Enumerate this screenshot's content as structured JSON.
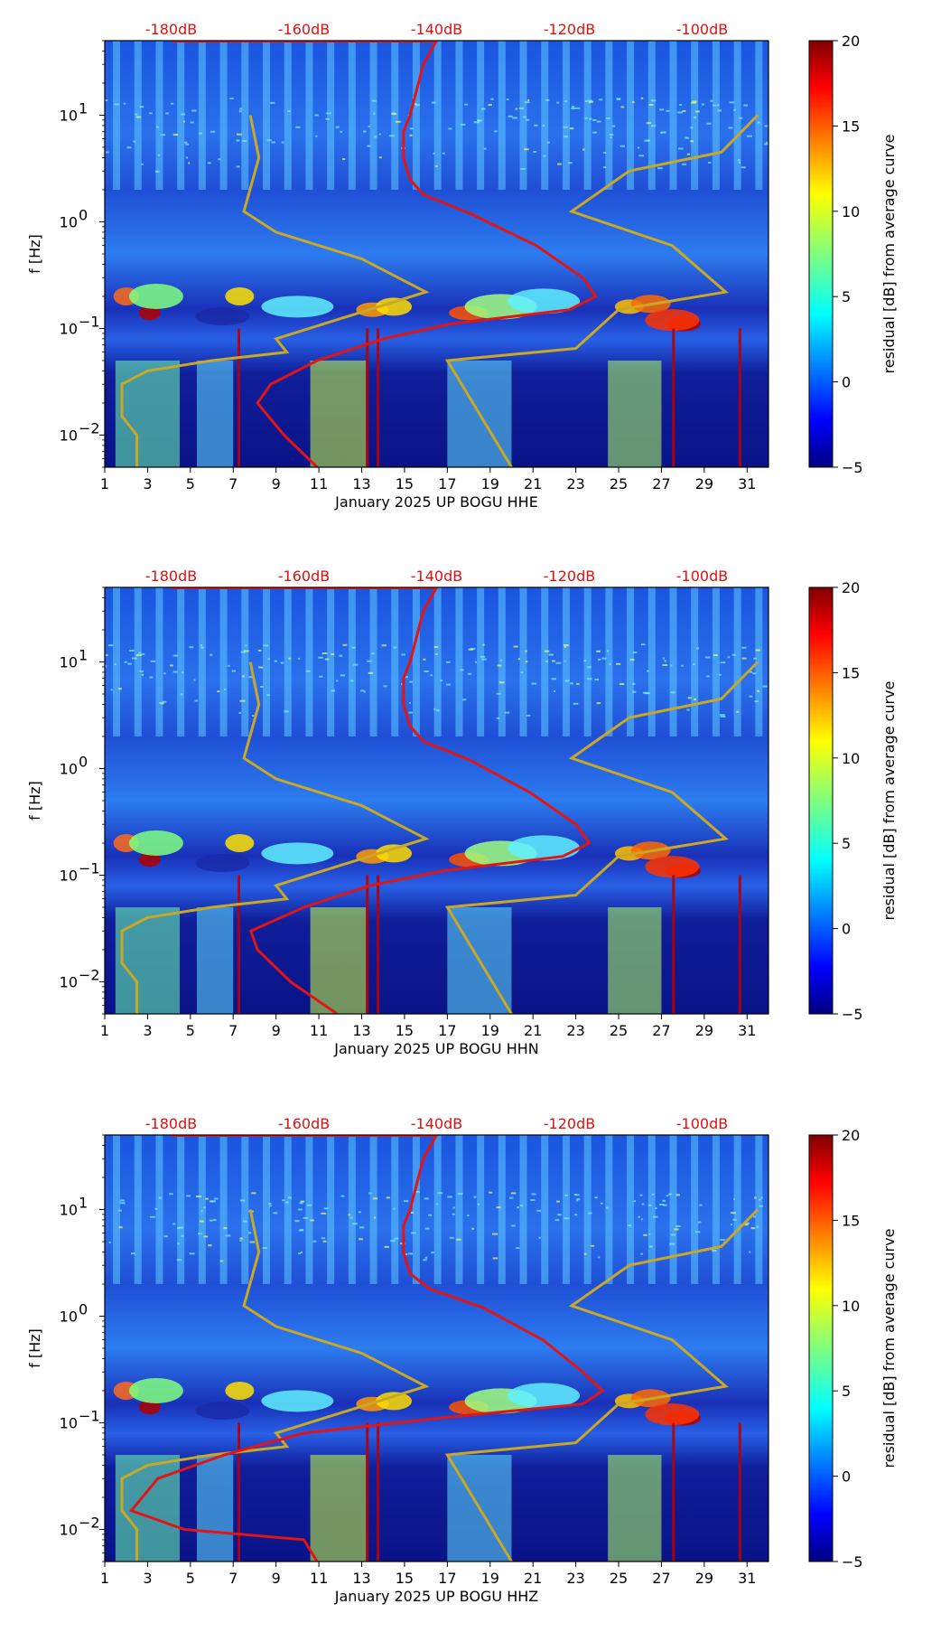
{
  "colors": {
    "psd_curve": "#e01515",
    "noise_model": "#c9a825",
    "db_label": "#e01010",
    "spectro_bg": "#0a1fb8"
  },
  "chart_data": [
    {
      "type": "heatmap",
      "component": "HHE",
      "xlabel": "January 2025 UP BOGU  HHE",
      "ylabel": "f [Hz]",
      "xlim": [
        1,
        32
      ],
      "ylim": [
        0.005,
        50
      ],
      "yscale": "log",
      "x_ticks": [
        "1",
        "3",
        "5",
        "7",
        "9",
        "11",
        "13",
        "15",
        "17",
        "19",
        "21",
        "23",
        "25",
        "27",
        "29",
        "31"
      ],
      "y_ticks": [
        {
          "exp": -2,
          "label": "10",
          "sup": "−2"
        },
        {
          "exp": -1,
          "label": "10",
          "sup": "−1"
        },
        {
          "exp": 0,
          "label": "10",
          "sup": "0"
        },
        {
          "exp": 1,
          "label": "10",
          "sup": "1"
        }
      ],
      "top_db_labels": [
        "-180dB",
        "-160dB",
        "-140dB",
        "-120dB",
        "-100dB"
      ],
      "colorbar": {
        "label": "residual [dB] from average curve",
        "min": -5,
        "max": 20,
        "ticks": [
          "20",
          "15",
          "10",
          "5",
          "0",
          "−5"
        ]
      },
      "psd_curve_db": [
        [
          -140,
          50
        ],
        [
          -142,
          30
        ],
        [
          -144,
          10
        ],
        [
          -145,
          7
        ],
        [
          -145,
          4
        ],
        [
          -144,
          2.5
        ],
        [
          -142,
          1.8
        ],
        [
          -135,
          1.2
        ],
        [
          -125,
          0.6
        ],
        [
          -118,
          0.3
        ],
        [
          -116,
          0.2
        ],
        [
          -120,
          0.15
        ],
        [
          -138,
          0.11
        ],
        [
          -148,
          0.08
        ],
        [
          -158,
          0.05
        ],
        [
          -165,
          0.03
        ],
        [
          -167,
          0.02
        ],
        [
          -163,
          0.01
        ],
        [
          -158,
          0.005
        ]
      ],
      "noise_model_day": [
        [
          31.5,
          10
        ],
        [
          29.8,
          4.5
        ],
        [
          25.5,
          3
        ],
        [
          22.8,
          1.25
        ],
        [
          27.5,
          0.6
        ],
        [
          30,
          0.22
        ],
        [
          25,
          0.15
        ],
        [
          23,
          0.065
        ],
        [
          17,
          0.05
        ],
        [
          20,
          0.005
        ]
      ],
      "noise_model_day_low": [
        [
          7.8,
          10
        ],
        [
          8.2,
          4
        ],
        [
          7.5,
          1.25
        ],
        [
          9,
          0.8
        ],
        [
          13,
          0.45
        ],
        [
          16,
          0.22
        ],
        [
          9,
          0.08
        ],
        [
          9.5,
          0.06
        ],
        [
          6,
          0.05
        ],
        [
          3,
          0.04
        ],
        [
          1.8,
          0.03
        ],
        [
          1.8,
          0.015
        ],
        [
          2.5,
          0.01
        ],
        [
          2.5,
          0.005
        ]
      ]
    },
    {
      "type": "heatmap",
      "component": "HHN",
      "xlabel": "January 2025 UP BOGU  HHN",
      "ylabel": "f [Hz]",
      "xlim": [
        1,
        32
      ],
      "ylim": [
        0.005,
        50
      ],
      "yscale": "log",
      "x_ticks": [
        "1",
        "3",
        "5",
        "7",
        "9",
        "11",
        "13",
        "15",
        "17",
        "19",
        "21",
        "23",
        "25",
        "27",
        "29",
        "31"
      ],
      "y_ticks": [
        {
          "exp": -2,
          "label": "10",
          "sup": "−2"
        },
        {
          "exp": -1,
          "label": "10",
          "sup": "−1"
        },
        {
          "exp": 0,
          "label": "10",
          "sup": "0"
        },
        {
          "exp": 1,
          "label": "10",
          "sup": "1"
        }
      ],
      "top_db_labels": [
        "-180dB",
        "-160dB",
        "-140dB",
        "-120dB",
        "-100dB"
      ],
      "colorbar": {
        "label": "residual [dB] from average curve",
        "min": -5,
        "max": 20,
        "ticks": [
          "20",
          "15",
          "10",
          "5",
          "0",
          "−5"
        ]
      },
      "psd_curve_db": [
        [
          -140,
          50
        ],
        [
          -142,
          30
        ],
        [
          -144,
          10
        ],
        [
          -145,
          7
        ],
        [
          -145,
          4
        ],
        [
          -144,
          2.5
        ],
        [
          -142,
          1.8
        ],
        [
          -135,
          1.2
        ],
        [
          -126,
          0.6
        ],
        [
          -119,
          0.3
        ],
        [
          -117,
          0.2
        ],
        [
          -121,
          0.15
        ],
        [
          -139,
          0.11
        ],
        [
          -150,
          0.08
        ],
        [
          -160,
          0.05
        ],
        [
          -168,
          0.03
        ],
        [
          -167,
          0.02
        ],
        [
          -162,
          0.01
        ],
        [
          -155,
          0.005
        ]
      ],
      "noise_model_day": [
        [
          31.5,
          10
        ],
        [
          29.8,
          4.5
        ],
        [
          25.5,
          3
        ],
        [
          22.8,
          1.25
        ],
        [
          27.5,
          0.6
        ],
        [
          30,
          0.22
        ],
        [
          25,
          0.15
        ],
        [
          23,
          0.065
        ],
        [
          17,
          0.05
        ],
        [
          20,
          0.005
        ]
      ],
      "noise_model_day_low": [
        [
          7.8,
          10
        ],
        [
          8.2,
          4
        ],
        [
          7.5,
          1.25
        ],
        [
          9,
          0.8
        ],
        [
          13,
          0.45
        ],
        [
          16,
          0.22
        ],
        [
          9,
          0.08
        ],
        [
          9.5,
          0.06
        ],
        [
          6,
          0.05
        ],
        [
          3,
          0.04
        ],
        [
          1.8,
          0.03
        ],
        [
          1.8,
          0.015
        ],
        [
          2.5,
          0.01
        ],
        [
          2.5,
          0.005
        ]
      ]
    },
    {
      "type": "heatmap",
      "component": "HHZ",
      "xlabel": "January 2025 UP BOGU  HHZ",
      "ylabel": "f [Hz]",
      "xlim": [
        1,
        32
      ],
      "ylim": [
        0.005,
        50
      ],
      "yscale": "log",
      "x_ticks": [
        "1",
        "3",
        "5",
        "7",
        "9",
        "11",
        "13",
        "15",
        "17",
        "19",
        "21",
        "23",
        "25",
        "27",
        "29",
        "31"
      ],
      "y_ticks": [
        {
          "exp": -2,
          "label": "10",
          "sup": "−2"
        },
        {
          "exp": -1,
          "label": "10",
          "sup": "−1"
        },
        {
          "exp": 0,
          "label": "10",
          "sup": "0"
        },
        {
          "exp": 1,
          "label": "10",
          "sup": "1"
        }
      ],
      "top_db_labels": [
        "-180dB",
        "-160dB",
        "-140dB",
        "-120dB",
        "-100dB"
      ],
      "colorbar": {
        "label": "residual [dB] from average curve",
        "min": -5,
        "max": 20,
        "ticks": [
          "20",
          "15",
          "10",
          "5",
          "0",
          "−5"
        ]
      },
      "psd_curve_db": [
        [
          -140,
          50
        ],
        [
          -142,
          30
        ],
        [
          -144,
          10
        ],
        [
          -145,
          7
        ],
        [
          -145,
          4
        ],
        [
          -144,
          2.5
        ],
        [
          -141,
          1.8
        ],
        [
          -133,
          1.2
        ],
        [
          -124,
          0.6
        ],
        [
          -118,
          0.3
        ],
        [
          -115,
          0.2
        ],
        [
          -118,
          0.15
        ],
        [
          -140,
          0.11
        ],
        [
          -160,
          0.08
        ],
        [
          -172,
          0.05
        ],
        [
          -182,
          0.03
        ],
        [
          -186,
          0.015
        ],
        [
          -178,
          0.01
        ],
        [
          -160,
          0.008
        ],
        [
          -158,
          0.005
        ]
      ],
      "noise_model_day": [
        [
          31.5,
          10
        ],
        [
          29.8,
          4.5
        ],
        [
          25.5,
          3
        ],
        [
          22.8,
          1.25
        ],
        [
          27.5,
          0.6
        ],
        [
          30,
          0.22
        ],
        [
          25,
          0.15
        ],
        [
          23,
          0.065
        ],
        [
          17,
          0.05
        ],
        [
          20,
          0.005
        ]
      ],
      "noise_model_day_low": [
        [
          7.8,
          10
        ],
        [
          8.2,
          4
        ],
        [
          7.5,
          1.25
        ],
        [
          9,
          0.8
        ],
        [
          13,
          0.45
        ],
        [
          16,
          0.22
        ],
        [
          9,
          0.08
        ],
        [
          9.5,
          0.06
        ],
        [
          6,
          0.05
        ],
        [
          3,
          0.04
        ],
        [
          1.8,
          0.03
        ],
        [
          1.8,
          0.015
        ],
        [
          2.5,
          0.01
        ],
        [
          2.5,
          0.005
        ]
      ]
    }
  ]
}
